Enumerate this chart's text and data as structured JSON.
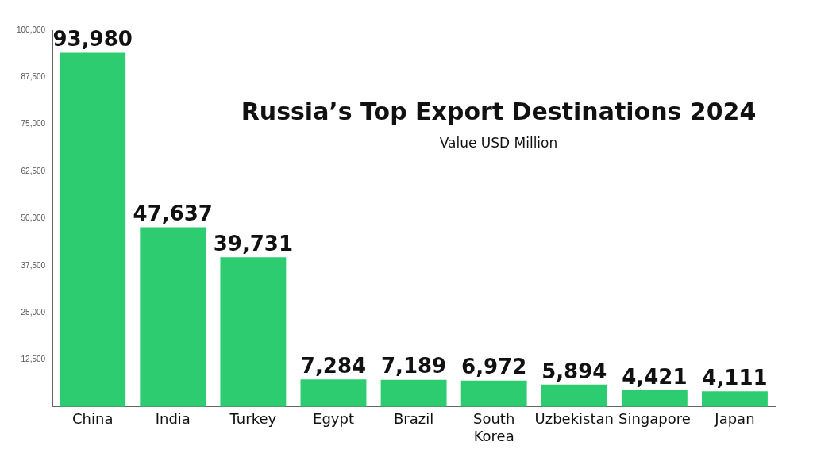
{
  "chart_data": {
    "type": "bar",
    "title": "Russia’s Top Export Destinations 2024",
    "subtitle": "Value USD Million",
    "categories": [
      "China",
      "India",
      "Turkey",
      "Egypt",
      "Brazil",
      "South Korea",
      "Uzbekistan",
      "Singapore",
      "Japan"
    ],
    "values": [
      93980,
      47637,
      39731,
      7284,
      7189,
      6972,
      5894,
      4421,
      4111
    ],
    "color": "#2ecc71",
    "ylim": [
      0,
      100000
    ],
    "yticks": [
      {
        "value": 0,
        "label": null
      },
      {
        "value": 12500,
        "label": "12,500"
      },
      {
        "value": 25000,
        "label": "25,000"
      },
      {
        "value": 37500,
        "label": "37,500"
      },
      {
        "value": 50000,
        "label": "50,000"
      },
      {
        "value": 62500,
        "label": "62,500"
      },
      {
        "value": 75000,
        "label": "75,000"
      },
      {
        "value": 87500,
        "label": "87,500"
      },
      {
        "value": 100000,
        "label": "100,000"
      }
    ],
    "value_labels": [
      "93,980",
      "47,637",
      "39,731",
      "7,284",
      "7,189",
      "6,972",
      "5,894",
      "4,421",
      "4,111"
    ],
    "grid": false,
    "legend": false
  }
}
